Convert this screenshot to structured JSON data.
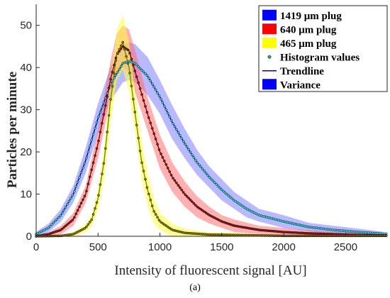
{
  "caption": "(a)",
  "chart_data": {
    "type": "line",
    "xlabel": "Intensity of fluorescent signal [AU]",
    "ylabel": "Particles per minute",
    "xlim": [
      0,
      2830
    ],
    "ylim": [
      0,
      55
    ],
    "xticks": [
      0,
      500,
      1000,
      1500,
      2000,
      2500
    ],
    "yticks": [
      0,
      10,
      20,
      30,
      40,
      50
    ],
    "grid": false,
    "legend_position": "top-right",
    "legend": [
      {
        "label": "1419 μm plug",
        "marker": "patch",
        "color": "#0000ff"
      },
      {
        "label": "640 μm plug",
        "marker": "patch",
        "color": "#ff0000"
      },
      {
        "label": "465 μm plug",
        "marker": "patch",
        "color": "#ffff00"
      },
      {
        "label": "Histogram values",
        "marker": "point",
        "color": "#2aa198"
      },
      {
        "label": "Trendline",
        "marker": "line",
        "color": "#0000aa"
      },
      {
        "label": "Variance",
        "marker": "patch",
        "color": "#0000ff"
      }
    ],
    "series": [
      {
        "name": "1419 μm plug",
        "line_color": "#0000aa",
        "band_color": "#8080ff",
        "marker_color": "#40c8d8",
        "x": [
          0,
          100,
          200,
          300,
          400,
          500,
          600,
          700,
          750,
          800,
          900,
          1000,
          1100,
          1200,
          1300,
          1400,
          1500,
          1600,
          1700,
          1800,
          2000,
          2200,
          2400,
          2600,
          2800
        ],
        "y": [
          0.5,
          2,
          5,
          10,
          18,
          28,
          36,
          41,
          41.5,
          41,
          38,
          33,
          27,
          22,
          17.5,
          14,
          11,
          8.5,
          6.5,
          5,
          3.5,
          2.2,
          1.5,
          1,
          0.6
        ],
        "variance": [
          0.5,
          1,
          1.5,
          2,
          3,
          3.5,
          4,
          4.5,
          4.5,
          4.5,
          4.5,
          4,
          4,
          3.5,
          3,
          2.5,
          2.5,
          2,
          2,
          1.5,
          1.5,
          1,
          1,
          0.8,
          0.5
        ]
      },
      {
        "name": "640 μm plug",
        "line_color": "#8b0000",
        "band_color": "#ff7070",
        "marker_color": "#8b1a1a",
        "x": [
          0,
          100,
          200,
          300,
          400,
          500,
          600,
          650,
          700,
          750,
          800,
          900,
          1000,
          1100,
          1200,
          1300,
          1400,
          1500,
          1600,
          1800,
          2000,
          2200,
          2400,
          2600,
          2800
        ],
        "y": [
          0,
          0.5,
          1.5,
          4,
          10,
          22,
          37,
          43,
          45,
          44,
          39,
          29,
          20,
          14,
          10,
          7,
          5,
          3.5,
          2.5,
          1.5,
          1,
          0.7,
          0.5,
          0.3,
          0.2
        ],
        "variance": [
          0.3,
          0.5,
          1,
          1.5,
          2,
          3.5,
          4.5,
          5,
          5,
          5,
          5,
          4,
          4,
          3.5,
          3,
          2.5,
          2,
          1.5,
          1.5,
          1,
          1,
          0.8,
          0.6,
          0.5,
          0.4
        ]
      },
      {
        "name": "465 μm plug",
        "line_color": "#6b8e00",
        "band_color": "#ffff40",
        "marker_color": "#8c7a10",
        "x": [
          0,
          200,
          300,
          400,
          450,
          500,
          550,
          600,
          650,
          700,
          750,
          800,
          850,
          900,
          950,
          1000,
          1100,
          1200,
          1400,
          1600,
          1800,
          2000,
          2400,
          2800
        ],
        "y": [
          0,
          0.1,
          0.5,
          2,
          4,
          9,
          18,
          32,
          43,
          46,
          40,
          29,
          18,
          11,
          6,
          3.5,
          1.5,
          0.8,
          0.4,
          0.3,
          0.2,
          0.1,
          0.1,
          0.1
        ],
        "variance": [
          0.3,
          0.3,
          0.5,
          1,
          1.5,
          2.5,
          4,
          5,
          6,
          6.5,
          6,
          5,
          4.5,
          4,
          3,
          2,
          1.5,
          1,
          0.6,
          0.5,
          0.4,
          0.3,
          0.3,
          0.3
        ]
      }
    ]
  }
}
